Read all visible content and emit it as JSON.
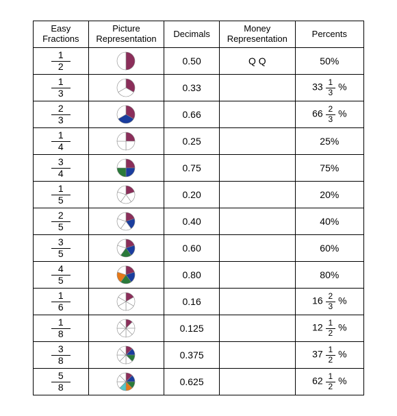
{
  "headers": [
    "Easy\nFractions",
    "Picture\nRepresentation",
    "Decimals",
    "Money\nRepresentation",
    "Percents"
  ],
  "pie_empty_color": "#ffffff",
  "pie_stroke": "#888888",
  "slice_colors": [
    "#8b2e5a",
    "#1a3d9e",
    "#2a7a3a",
    "#e67817",
    "#52c7c7",
    "#663399",
    "#999999"
  ],
  "rows": [
    {
      "num": "1",
      "den": "2",
      "slices": 2,
      "filled": [
        0
      ],
      "dec": "0.50",
      "money": "Q  Q",
      "pct_whole": "50%"
    },
    {
      "num": "1",
      "den": "3",
      "slices": 3,
      "filled": [
        0
      ],
      "dec": "0.33",
      "money": "",
      "pct_pre": "33",
      "pct_n": "1",
      "pct_d": "3"
    },
    {
      "num": "2",
      "den": "3",
      "slices": 3,
      "filled": [
        0,
        1
      ],
      "dec": "0.66",
      "money": "",
      "pct_pre": "66",
      "pct_n": "2",
      "pct_d": "3"
    },
    {
      "num": "1",
      "den": "4",
      "slices": 4,
      "filled": [
        0
      ],
      "dec": "0.25",
      "money": "",
      "pct_whole": "25%"
    },
    {
      "num": "3",
      "den": "4",
      "slices": 4,
      "filled": [
        0,
        1,
        2
      ],
      "dec": "0.75",
      "money": "",
      "pct_whole": "75%"
    },
    {
      "num": "1",
      "den": "5",
      "slices": 5,
      "filled": [
        0
      ],
      "dec": "0.20",
      "money": "",
      "pct_whole": "20%"
    },
    {
      "num": "2",
      "den": "5",
      "slices": 5,
      "filled": [
        0,
        1
      ],
      "dec": "0.40",
      "money": "",
      "pct_whole": "40%"
    },
    {
      "num": "3",
      "den": "5",
      "slices": 5,
      "filled": [
        0,
        1,
        2
      ],
      "dec": "0.60",
      "money": "",
      "pct_whole": "60%"
    },
    {
      "num": "4",
      "den": "5",
      "slices": 5,
      "filled": [
        0,
        1,
        2,
        3
      ],
      "dec": "0.80",
      "money": "",
      "pct_whole": "80%"
    },
    {
      "num": "1",
      "den": "6",
      "slices": 6,
      "filled": [
        0
      ],
      "dec": "0.16",
      "money": "",
      "pct_pre": "16",
      "pct_n": "2",
      "pct_d": "3"
    },
    {
      "num": "1",
      "den": "8",
      "slices": 8,
      "filled": [
        0
      ],
      "dec": "0.125",
      "money": "",
      "pct_pre": "12",
      "pct_n": "1",
      "pct_d": "2"
    },
    {
      "num": "3",
      "den": "8",
      "slices": 8,
      "filled": [
        0,
        1,
        2
      ],
      "dec": "0.375",
      "money": "",
      "pct_pre": "37",
      "pct_n": "1",
      "pct_d": "2"
    },
    {
      "num": "5",
      "den": "8",
      "slices": 8,
      "filled": [
        0,
        1,
        2,
        3,
        4
      ],
      "dec": "0.625",
      "money": "",
      "pct_pre": "62",
      "pct_n": "1",
      "pct_d": "2"
    }
  ],
  "pie_radius": 13
}
